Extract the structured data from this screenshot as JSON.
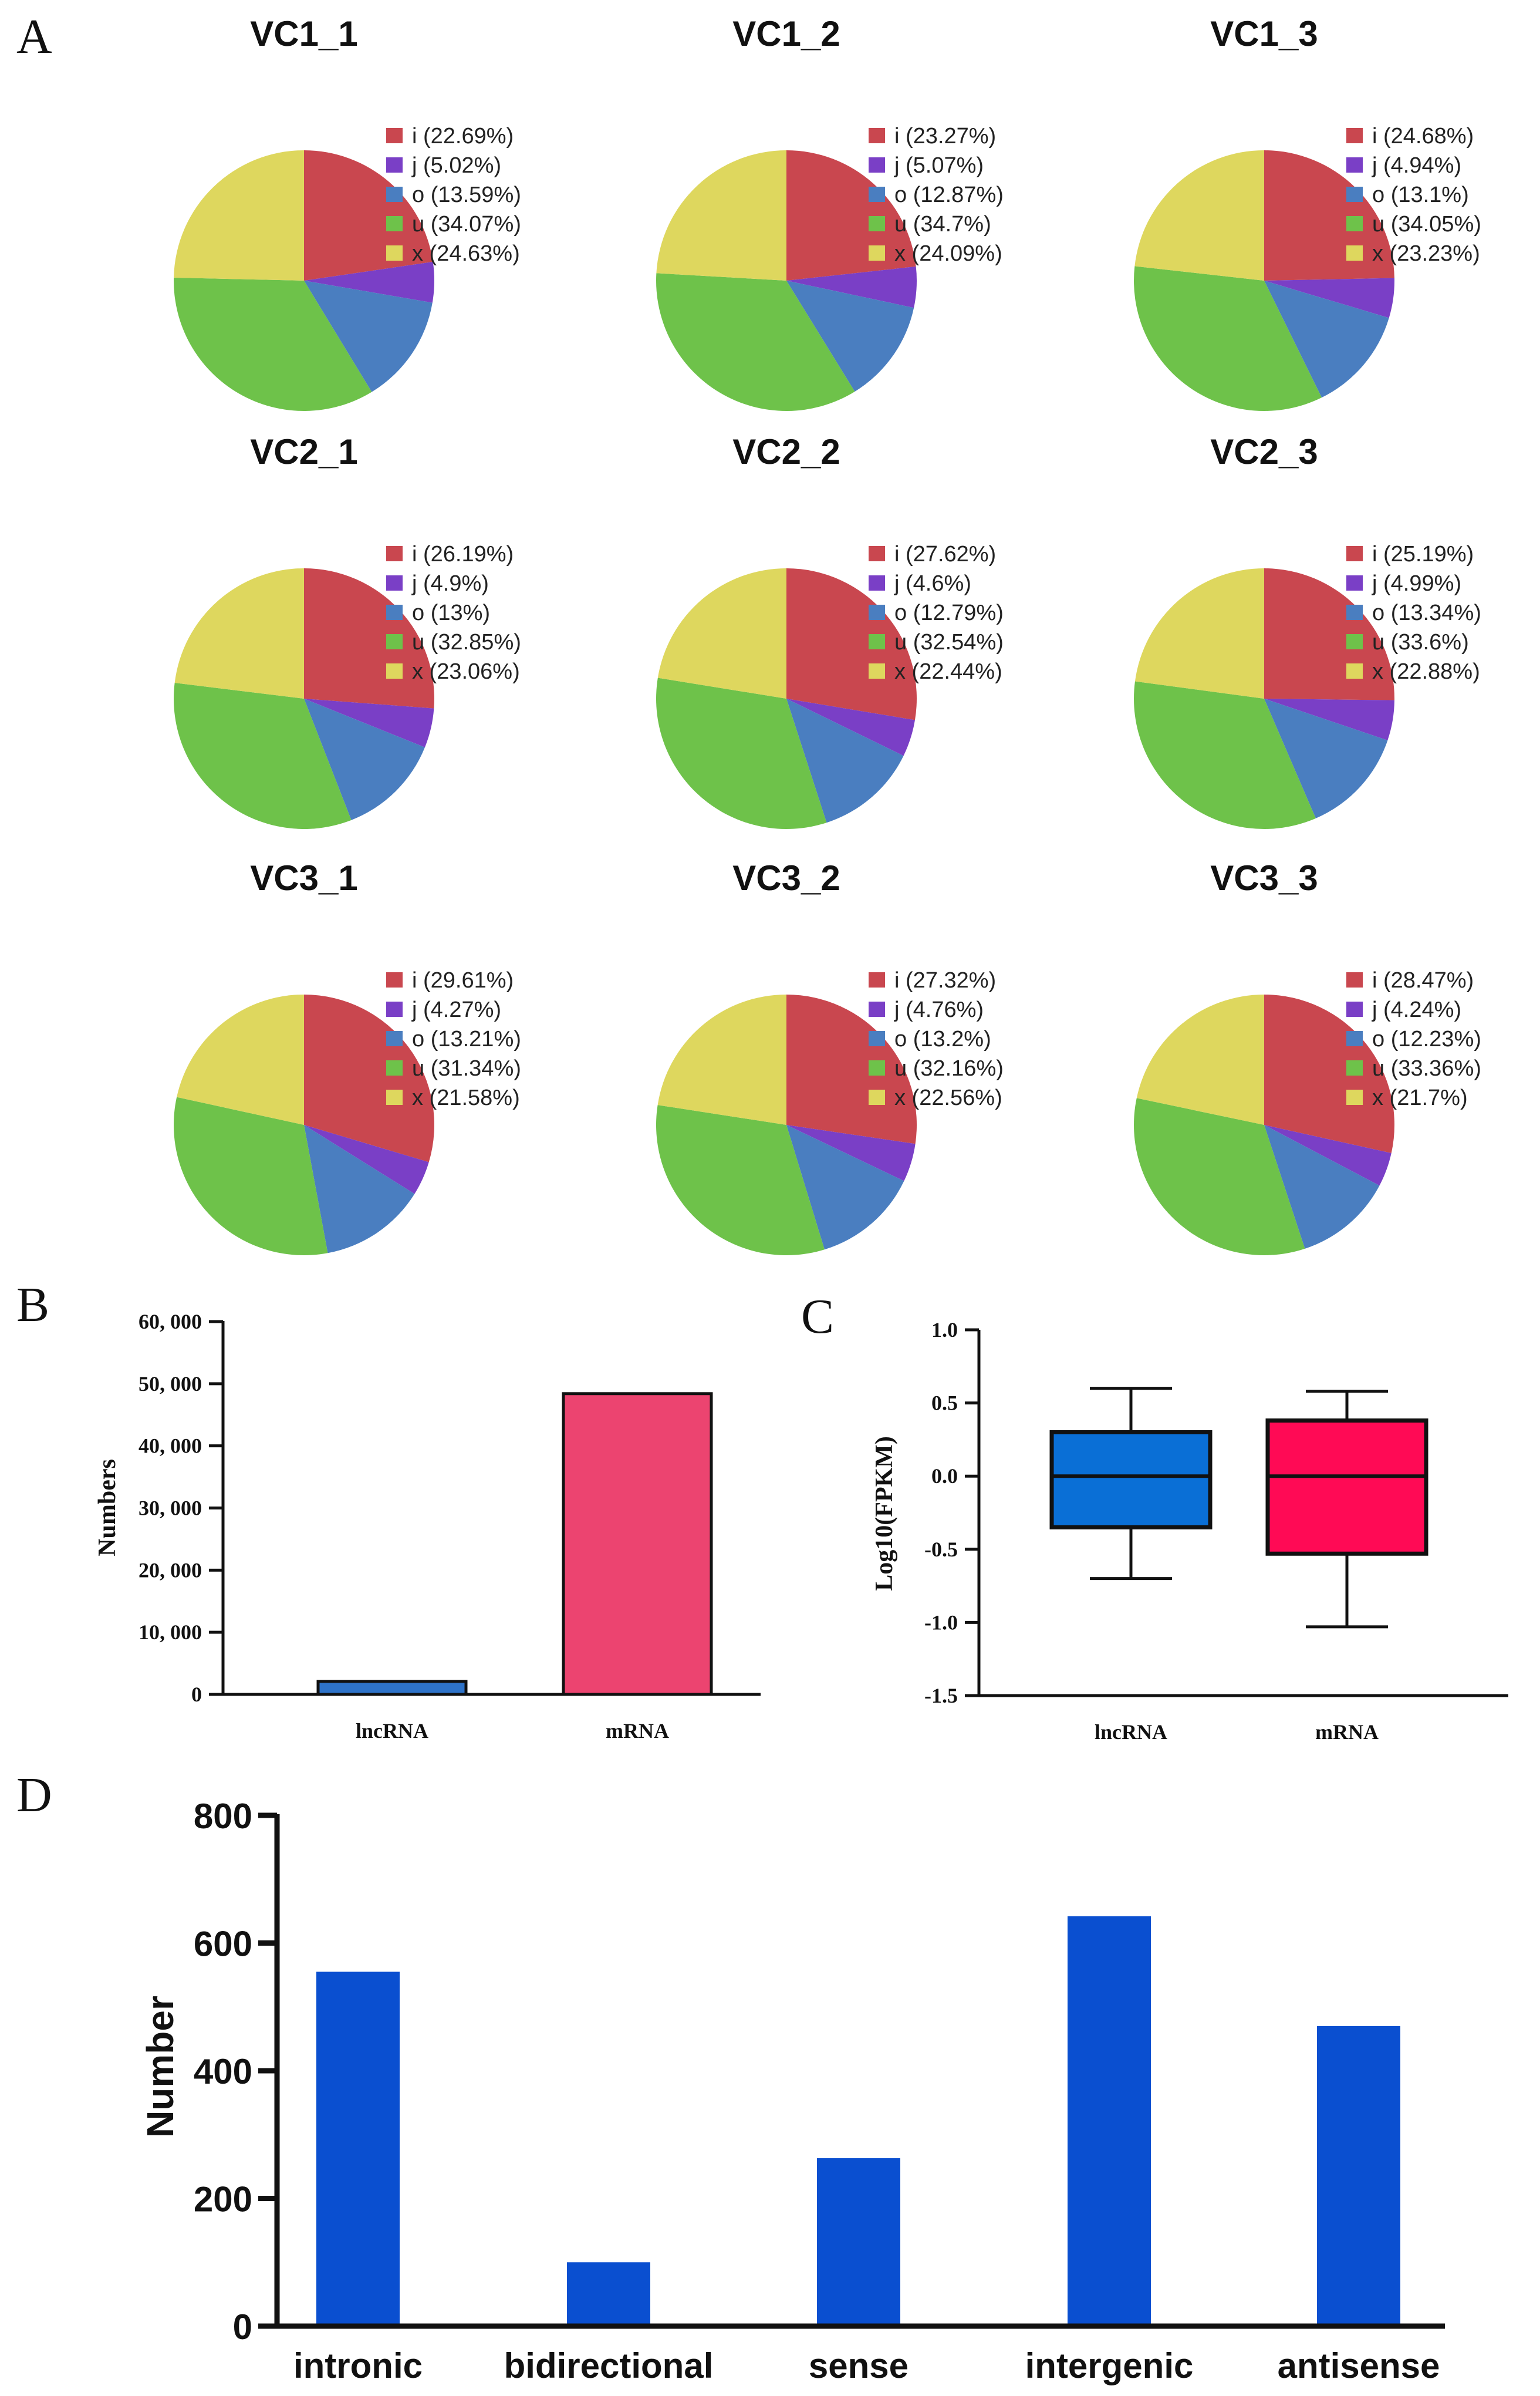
{
  "colors": {
    "i": "#C9474F",
    "j": "#7A3FC6",
    "o": "#4A7EC0",
    "u": "#6EC24A",
    "x": "#DED75E",
    "lncRNA_bar": "#2E73C9",
    "mRNA_bar": "#EC4470",
    "lncRNA_box": "#0A6FD6",
    "mRNA_box": "#FF0A55",
    "d_bar": "#0A4FD0"
  },
  "panels": {
    "A": "A",
    "B": "B",
    "C": "C",
    "D": "D"
  },
  "chart_data": [
    {
      "type": "pie",
      "panel": "A",
      "categories": [
        "i",
        "j",
        "o",
        "u",
        "x"
      ],
      "pies": [
        {
          "title": "VC1_1",
          "values": [
            22.69,
            5.02,
            13.59,
            34.07,
            24.63
          ],
          "labels": [
            "i (22.69%)",
            "j (5.02%)",
            "o (13.59%)",
            "u (34.07%)",
            "x (24.63%)"
          ]
        },
        {
          "title": "VC1_2",
          "values": [
            23.27,
            5.07,
            12.87,
            34.7,
            24.09
          ],
          "labels": [
            "i (23.27%)",
            "j (5.07%)",
            "o (12.87%)",
            "u (34.7%)",
            "x (24.09%)"
          ]
        },
        {
          "title": "VC1_3",
          "values": [
            24.68,
            4.94,
            13.1,
            34.05,
            23.23
          ],
          "labels": [
            "i (24.68%)",
            "j (4.94%)",
            "o (13.1%)",
            "u (34.05%)",
            "x (23.23%)"
          ]
        },
        {
          "title": "VC2_1",
          "values": [
            26.19,
            4.9,
            13,
            32.85,
            23.06
          ],
          "labels": [
            "i (26.19%)",
            "j (4.9%)",
            "o (13%)",
            "u (32.85%)",
            "x (23.06%)"
          ]
        },
        {
          "title": "VC2_2",
          "values": [
            27.62,
            4.6,
            12.79,
            32.54,
            22.44
          ],
          "labels": [
            "i (27.62%)",
            "j (4.6%)",
            "o (12.79%)",
            "u (32.54%)",
            "x (22.44%)"
          ]
        },
        {
          "title": "VC2_3",
          "values": [
            25.19,
            4.99,
            13.34,
            33.6,
            22.88
          ],
          "labels": [
            "i (25.19%)",
            "j (4.99%)",
            "o (13.34%)",
            "u (33.6%)",
            "x (22.88%)"
          ]
        },
        {
          "title": "VC3_1",
          "values": [
            29.61,
            4.27,
            13.21,
            31.34,
            21.58
          ],
          "labels": [
            "i (29.61%)",
            "j (4.27%)",
            "o (13.21%)",
            "u (31.34%)",
            "x (21.58%)"
          ]
        },
        {
          "title": "VC3_2",
          "values": [
            27.32,
            4.76,
            13.2,
            32.16,
            22.56
          ],
          "labels": [
            "i (27.32%)",
            "j (4.76%)",
            "o (13.2%)",
            "u (32.16%)",
            "x (22.56%)"
          ]
        },
        {
          "title": "VC3_3",
          "values": [
            28.47,
            4.24,
            12.23,
            33.36,
            21.7
          ],
          "labels": [
            "i (28.47%)",
            "j (4.24%)",
            "o (12.23%)",
            "u (33.36%)",
            "x (21.7%)"
          ]
        }
      ]
    },
    {
      "type": "bar",
      "panel": "B",
      "categories": [
        "lncRNA",
        "mRNA"
      ],
      "values": [
        2100,
        48400
      ],
      "ylabel": "Numbers",
      "xlabel": "",
      "ylim": [
        0,
        60000
      ],
      "yticks": [
        0,
        10000,
        20000,
        30000,
        40000,
        50000,
        60000
      ],
      "ytick_labels": [
        "0",
        "10, 000",
        "20, 000",
        "30, 000",
        "40, 000",
        "50, 000",
        "60, 000"
      ]
    },
    {
      "type": "box",
      "panel": "C",
      "categories": [
        "lncRNA",
        "mRNA"
      ],
      "boxes": [
        {
          "name": "lncRNA",
          "min": -0.7,
          "q1": -0.35,
          "median": 0.0,
          "q3": 0.3,
          "max": 0.6
        },
        {
          "name": "mRNA",
          "min": -1.03,
          "q1": -0.53,
          "median": 0.0,
          "q3": 0.38,
          "max": 0.58
        }
      ],
      "ylabel": "Log10(FPKM)",
      "ylim": [
        -1.5,
        1.0
      ],
      "yticks": [
        -1.5,
        -1.0,
        -0.5,
        0.0,
        0.5,
        1.0
      ],
      "ytick_labels": [
        "-1.5",
        "-1.0",
        "-0.5",
        "0.0",
        "0.5",
        "1.0"
      ]
    },
    {
      "type": "bar",
      "panel": "D",
      "categories": [
        "intronic",
        "bidirectional",
        "sense",
        "intergenic",
        "antisense"
      ],
      "values": [
        555,
        100,
        263,
        642,
        470
      ],
      "ylabel": "Number",
      "xlabel": "",
      "ylim": [
        0,
        800
      ],
      "yticks": [
        0,
        200,
        400,
        600,
        800
      ],
      "ytick_labels": [
        "0",
        "200",
        "400",
        "600",
        "800"
      ]
    }
  ]
}
